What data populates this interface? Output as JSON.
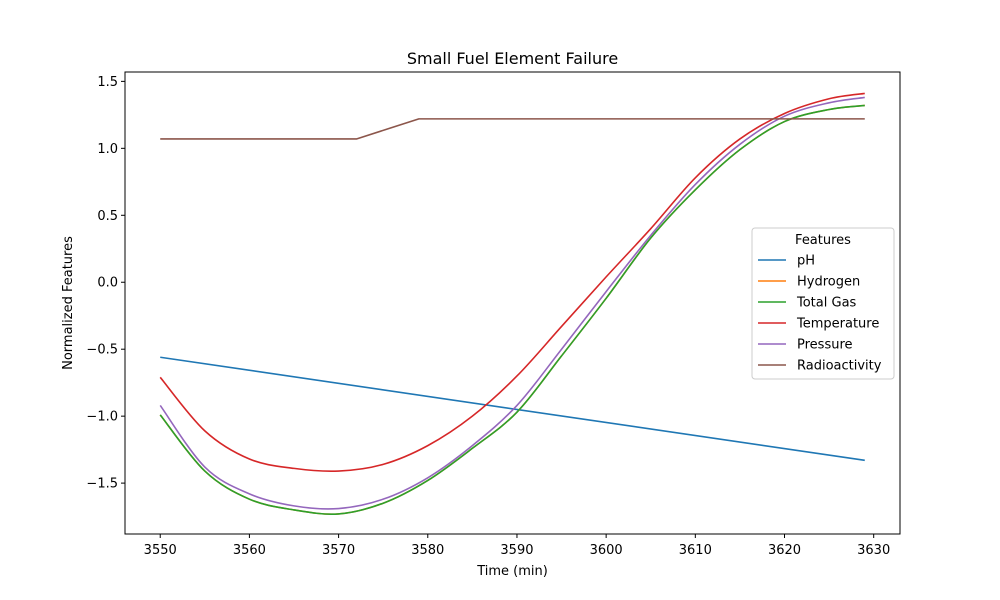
{
  "chart_data": {
    "type": "line",
    "title": "Small Fuel Element Failure",
    "xlabel": "Time (min)",
    "ylabel": "Normalized Features",
    "xlim": [
      3546.05,
      3632.95
    ],
    "ylim": [
      -1.88,
      1.57
    ],
    "xticks": [
      3550,
      3560,
      3570,
      3580,
      3590,
      3600,
      3610,
      3620,
      3630
    ],
    "yticks": [
      -1.5,
      -1.0,
      -0.5,
      0.0,
      0.5,
      1.0,
      1.5
    ],
    "xtick_labels": [
      "3550",
      "3560",
      "3570",
      "3580",
      "3590",
      "3600",
      "3610",
      "3620",
      "3630"
    ],
    "ytick_labels": [
      "−1.5",
      "−1.0",
      "−0.5",
      "0.0",
      "0.5",
      "1.0",
      "1.5"
    ],
    "grid": false,
    "legend": {
      "title": "Features",
      "position": "center-right"
    },
    "series": [
      {
        "name": "pH",
        "color": "#1f77b4",
        "x": [
          3550,
          3629
        ],
        "y": [
          -0.56,
          -1.33
        ]
      },
      {
        "name": "Hydrogen",
        "color": "#ff7f0e",
        "x": [
          3550,
          3555,
          3560,
          3565,
          3570,
          3575,
          3580,
          3585,
          3590,
          3595,
          3600,
          3605,
          3610,
          3615,
          3620,
          3625,
          3629
        ],
        "y": [
          -0.99,
          -1.41,
          -1.62,
          -1.7,
          -1.73,
          -1.65,
          -1.48,
          -1.24,
          -0.97,
          -0.55,
          -0.12,
          0.33,
          0.69,
          0.99,
          1.2,
          1.29,
          1.32
        ]
      },
      {
        "name": "Total Gas",
        "color": "#2ca02c",
        "x": [
          3550,
          3555,
          3560,
          3565,
          3570,
          3575,
          3580,
          3585,
          3590,
          3595,
          3600,
          3605,
          3610,
          3615,
          3620,
          3625,
          3629
        ],
        "y": [
          -0.99,
          -1.41,
          -1.62,
          -1.7,
          -1.73,
          -1.65,
          -1.48,
          -1.24,
          -0.97,
          -0.55,
          -0.12,
          0.33,
          0.69,
          0.99,
          1.2,
          1.29,
          1.32
        ]
      },
      {
        "name": "Temperature",
        "color": "#d62728",
        "x": [
          3550,
          3555,
          3560,
          3565,
          3570,
          3575,
          3580,
          3585,
          3590,
          3595,
          3600,
          3605,
          3610,
          3615,
          3620,
          3625,
          3629
        ],
        "y": [
          -0.71,
          -1.11,
          -1.32,
          -1.39,
          -1.41,
          -1.36,
          -1.22,
          -1.0,
          -0.7,
          -0.33,
          0.04,
          0.4,
          0.78,
          1.07,
          1.26,
          1.37,
          1.41
        ]
      },
      {
        "name": "Pressure",
        "color": "#9467bd",
        "x": [
          3550,
          3555,
          3560,
          3565,
          3570,
          3575,
          3580,
          3585,
          3590,
          3595,
          3600,
          3605,
          3610,
          3615,
          3620,
          3625,
          3629
        ],
        "y": [
          -0.92,
          -1.38,
          -1.58,
          -1.67,
          -1.69,
          -1.62,
          -1.46,
          -1.22,
          -0.92,
          -0.5,
          -0.07,
          0.35,
          0.73,
          1.03,
          1.24,
          1.34,
          1.38
        ]
      },
      {
        "name": "Radioactivity",
        "color": "#8c564b",
        "x": [
          3550,
          3572,
          3579,
          3629
        ],
        "y": [
          1.07,
          1.07,
          1.22,
          1.22
        ]
      }
    ]
  }
}
